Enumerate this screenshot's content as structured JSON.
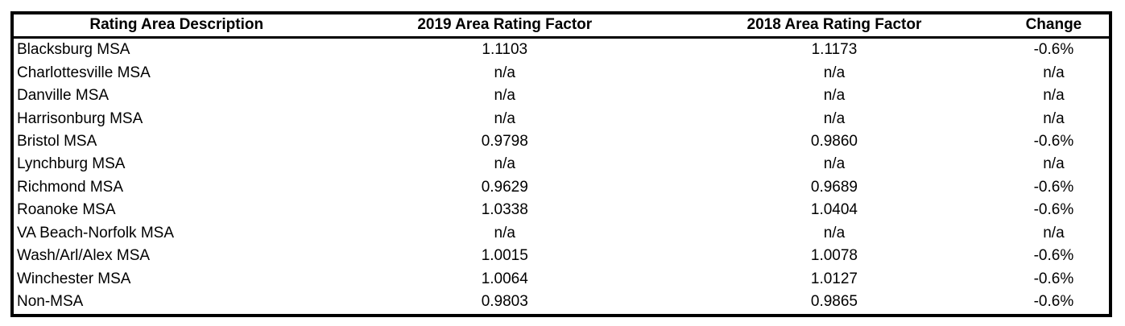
{
  "table": {
    "headers": [
      "Rating Area Description",
      "2019 Area Rating Factor",
      "2018 Area Rating Factor",
      "Change"
    ],
    "rows": [
      [
        "Blacksburg MSA",
        "1.1103",
        "1.1173",
        "-0.6%"
      ],
      [
        "Charlottesville MSA",
        "n/a",
        "n/a",
        "n/a"
      ],
      [
        "Danville MSA",
        "n/a",
        "n/a",
        "n/a"
      ],
      [
        "Harrisonburg MSA",
        "n/a",
        "n/a",
        "n/a"
      ],
      [
        "Bristol MSA",
        "0.9798",
        "0.9860",
        "-0.6%"
      ],
      [
        "Lynchburg MSA",
        "n/a",
        "n/a",
        "n/a"
      ],
      [
        "Richmond MSA",
        "0.9629",
        "0.9689",
        "-0.6%"
      ],
      [
        "Roanoke MSA",
        "1.0338",
        "1.0404",
        "-0.6%"
      ],
      [
        "VA Beach-Norfolk MSA",
        "n/a",
        "n/a",
        "n/a"
      ],
      [
        "Wash/Arl/Alex MSA",
        "1.0015",
        "1.0078",
        "-0.6%"
      ],
      [
        "Winchester MSA",
        "1.0064",
        "1.0127",
        "-0.6%"
      ],
      [
        "Non-MSA",
        "0.9803",
        "0.9865",
        "-0.6%"
      ]
    ],
    "colors": {
      "border": "#000000",
      "text": "#000000",
      "background": "#ffffff"
    }
  }
}
